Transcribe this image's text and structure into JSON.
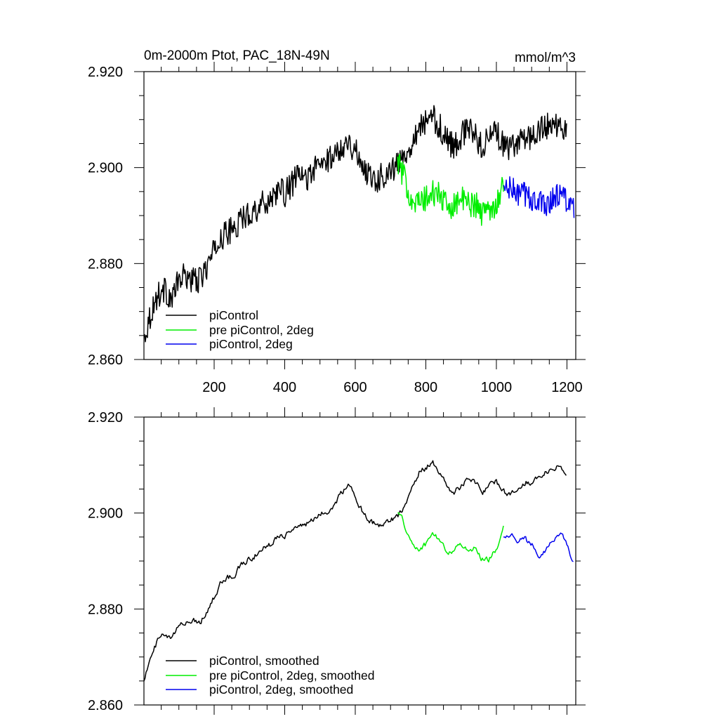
{
  "colors": {
    "piControl": "#000000",
    "pre_2deg": "#00ee00",
    "pi_2deg": "#0000ee"
  },
  "chart_data": [
    {
      "type": "line",
      "title": "0m-2000m Ptot, PAC_18N-49N",
      "units": "mmol/m^3",
      "xlim": [
        1,
        1225
      ],
      "ylim": [
        2.86,
        2.92
      ],
      "ytick_labels": [
        "2.920",
        "2.900",
        "2.880",
        "2.860"
      ],
      "yticks": [
        2.92,
        2.9,
        2.88,
        2.86
      ],
      "xtick_labels": [
        "200",
        "400",
        "600",
        "800",
        "1000",
        "1200"
      ],
      "xticks": [
        200,
        400,
        600,
        800,
        1000,
        1200
      ],
      "legend_position": "bottom-left",
      "series": [
        {
          "name": "piControl",
          "color_key": "piControl",
          "smooth": false,
          "x": [
            1,
            20,
            40,
            60,
            80,
            100,
            120,
            140,
            160,
            180,
            200,
            220,
            240,
            260,
            280,
            300,
            320,
            340,
            360,
            380,
            400,
            420,
            440,
            460,
            480,
            500,
            520,
            540,
            560,
            580,
            600,
            620,
            640,
            660,
            680,
            700,
            720,
            740,
            760,
            780,
            800,
            820,
            840,
            860,
            880,
            900,
            920,
            940,
            960,
            980,
            1000,
            1020,
            1040,
            1060,
            1080,
            1100,
            1120,
            1140,
            1160,
            1180,
            1200
          ],
          "y": [
            2.8645,
            2.8695,
            2.8735,
            2.8745,
            2.8725,
            2.8765,
            2.8775,
            2.8765,
            2.8765,
            2.8795,
            2.8825,
            2.8855,
            2.8865,
            2.8875,
            2.8895,
            2.8905,
            2.8915,
            2.8925,
            2.8935,
            2.8955,
            2.8945,
            2.8965,
            2.8985,
            2.8975,
            2.8995,
            2.9005,
            2.9015,
            2.9025,
            2.9045,
            2.9055,
            2.9035,
            2.9005,
            2.8985,
            2.8975,
            2.8985,
            2.8995,
            2.9005,
            2.9025,
            2.9055,
            2.9085,
            2.9095,
            2.9105,
            2.9085,
            2.9055,
            2.9045,
            2.9065,
            2.9085,
            2.9065,
            2.9045,
            2.9065,
            2.9075,
            2.9045,
            2.9035,
            2.9055,
            2.9065,
            2.9065,
            2.9075,
            2.9085,
            2.9095,
            2.9085,
            2.9075
          ]
        },
        {
          "name": "pre piControl, 2deg",
          "color_key": "pre_2deg",
          "smooth": false,
          "x": [
            720,
            740,
            760,
            780,
            800,
            820,
            840,
            860,
            880,
            900,
            920,
            940,
            960,
            980,
            1000,
            1020
          ],
          "y": [
            2.9015,
            2.8975,
            2.8935,
            2.8925,
            2.8935,
            2.8945,
            2.8945,
            2.8915,
            2.8925,
            2.8935,
            2.8925,
            2.8925,
            2.8905,
            2.8915,
            2.8925,
            2.8965
          ]
        },
        {
          "name": "piControl, 2deg",
          "color_key": "pi_2deg",
          "smooth": false,
          "x": [
            1020,
            1040,
            1060,
            1080,
            1100,
            1120,
            1140,
            1160,
            1180,
            1200,
            1220
          ],
          "y": [
            2.8955,
            2.8955,
            2.8945,
            2.8945,
            2.8935,
            2.8925,
            2.8925,
            2.8935,
            2.8945,
            2.8935,
            2.8905
          ]
        }
      ]
    },
    {
      "type": "line",
      "ylim": [
        2.86,
        2.92
      ],
      "xlim": [
        1,
        1225
      ],
      "ytick_labels": [
        "2.920",
        "2.900",
        "2.880",
        "2.860"
      ],
      "yticks": [
        2.92,
        2.9,
        2.88,
        2.86
      ],
      "xticks": [
        200,
        400,
        600,
        800,
        1000,
        1200
      ],
      "legend_position": "bottom-left",
      "series": [
        {
          "name": "piControl, smoothed",
          "color_key": "piControl",
          "smooth": true,
          "x": [
            1,
            20,
            40,
            60,
            80,
            100,
            120,
            140,
            160,
            180,
            200,
            220,
            240,
            260,
            280,
            300,
            320,
            340,
            360,
            380,
            400,
            420,
            440,
            460,
            480,
            500,
            520,
            540,
            560,
            580,
            600,
            620,
            640,
            660,
            680,
            700,
            720,
            740,
            760,
            780,
            800,
            820,
            840,
            860,
            880,
            900,
            920,
            940,
            960,
            980,
            1000,
            1020,
            1040,
            1060,
            1080,
            1100,
            1120,
            1140,
            1160,
            1180,
            1200
          ],
          "y": [
            2.8655,
            2.8695,
            2.8735,
            2.8745,
            2.8735,
            2.8765,
            2.8775,
            2.8775,
            2.8775,
            2.8795,
            2.8825,
            2.8855,
            2.8865,
            2.8875,
            2.8895,
            2.8905,
            2.8915,
            2.8925,
            2.8935,
            2.8955,
            2.8955,
            2.8965,
            2.8975,
            2.8975,
            2.8985,
            2.8995,
            2.9005,
            2.9015,
            2.9045,
            2.9055,
            2.9035,
            2.9005,
            2.8985,
            2.8975,
            2.8975,
            2.8985,
            2.8995,
            2.9015,
            2.9055,
            2.9085,
            2.9095,
            2.9105,
            2.9085,
            2.9055,
            2.9045,
            2.9055,
            2.9075,
            2.9065,
            2.9045,
            2.9055,
            2.9065,
            2.9045,
            2.9035,
            2.9055,
            2.9065,
            2.9065,
            2.9075,
            2.9085,
            2.9095,
            2.9095,
            2.9085
          ]
        },
        {
          "name": "pre piControl, 2deg, smoothed",
          "color_key": "pre_2deg",
          "smooth": true,
          "x": [
            720,
            740,
            760,
            780,
            800,
            820,
            840,
            860,
            880,
            900,
            920,
            940,
            960,
            980,
            1000,
            1020
          ],
          "y": [
            2.9005,
            2.8975,
            2.8935,
            2.8925,
            2.8935,
            2.8955,
            2.8945,
            2.8915,
            2.8925,
            2.8935,
            2.8925,
            2.8925,
            2.8905,
            2.8905,
            2.8925,
            2.8975
          ]
        },
        {
          "name": "piControl, 2deg, smoothed",
          "color_key": "pi_2deg",
          "smooth": true,
          "x": [
            1020,
            1040,
            1060,
            1080,
            1100,
            1120,
            1140,
            1160,
            1180,
            1200,
            1220
          ],
          "y": [
            2.8955,
            2.8955,
            2.8945,
            2.8945,
            2.8935,
            2.8915,
            2.8925,
            2.8945,
            2.8955,
            2.8935,
            2.8895
          ]
        }
      ]
    }
  ]
}
